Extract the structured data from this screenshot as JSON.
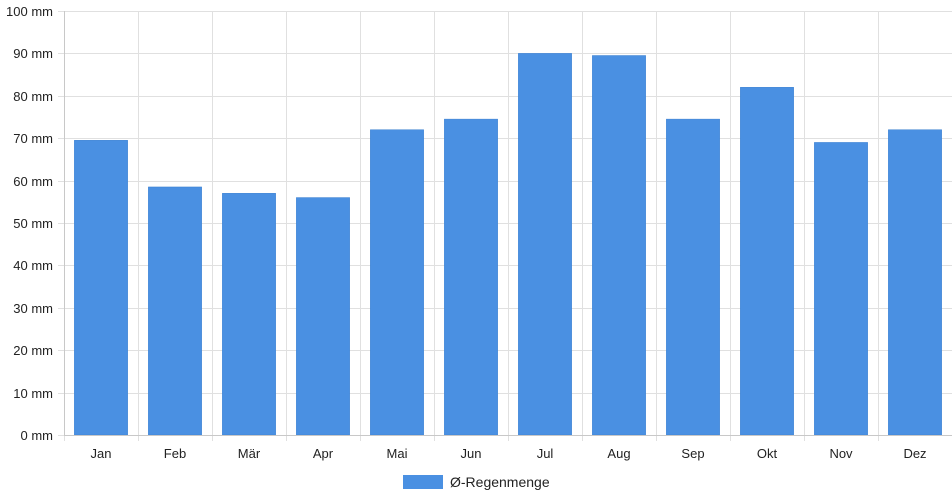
{
  "chart_data": {
    "type": "bar",
    "title": "",
    "xlabel": "",
    "ylabel": "",
    "categories": [
      "Jan",
      "Feb",
      "Mär",
      "Apr",
      "Mai",
      "Jun",
      "Jul",
      "Aug",
      "Sep",
      "Okt",
      "Nov",
      "Dez"
    ],
    "series": [
      {
        "name": "Ø-Regenmenge",
        "color": "#4a90e2",
        "values": [
          69.5,
          58.5,
          57,
          56,
          72,
          74.5,
          90,
          89.5,
          74.5,
          82,
          69,
          72
        ]
      }
    ],
    "ylim": [
      0,
      100
    ],
    "yticks": [
      0,
      10,
      20,
      30,
      40,
      50,
      60,
      70,
      80,
      90,
      100
    ],
    "y_unit": "mm",
    "grid": true,
    "legend": "bottom-center"
  }
}
